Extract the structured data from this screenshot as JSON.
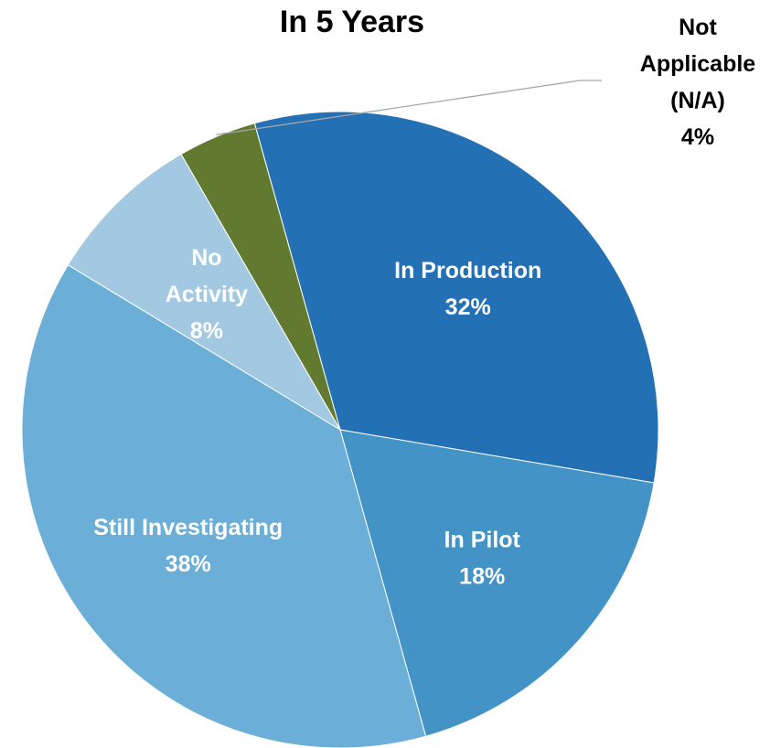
{
  "chart_data": {
    "type": "pie",
    "title": "In 5 Years",
    "start_angle_deg": -30,
    "direction": "clockwise",
    "slices": [
      {
        "key": "not-applicable",
        "label_lines": [
          "Not",
          "Applicable",
          "(N/A)",
          "4%"
        ],
        "value": 4,
        "color": "#617a30",
        "label_color": "#000000",
        "label_outside": true
      },
      {
        "key": "in-production",
        "label_lines": [
          "In Production",
          "32%"
        ],
        "value": 32,
        "color": "#2470b5",
        "label_color": "#ffffff",
        "label_outside": false
      },
      {
        "key": "in-pilot",
        "label_lines": [
          "In Pilot",
          "18%"
        ],
        "value": 18,
        "color": "#4393c7",
        "label_color": "#ffffff",
        "label_outside": false
      },
      {
        "key": "still-investigating",
        "label_lines": [
          "Still Investigating",
          "38%"
        ],
        "value": 38,
        "color": "#6baed7",
        "label_color": "#ffffff",
        "label_outside": false
      },
      {
        "key": "no-activity",
        "label_lines": [
          "No",
          "Activity",
          "8%"
        ],
        "value": 8,
        "color": "#a3c9e2",
        "label_color": "#ffffff",
        "label_outside": false
      }
    ]
  }
}
